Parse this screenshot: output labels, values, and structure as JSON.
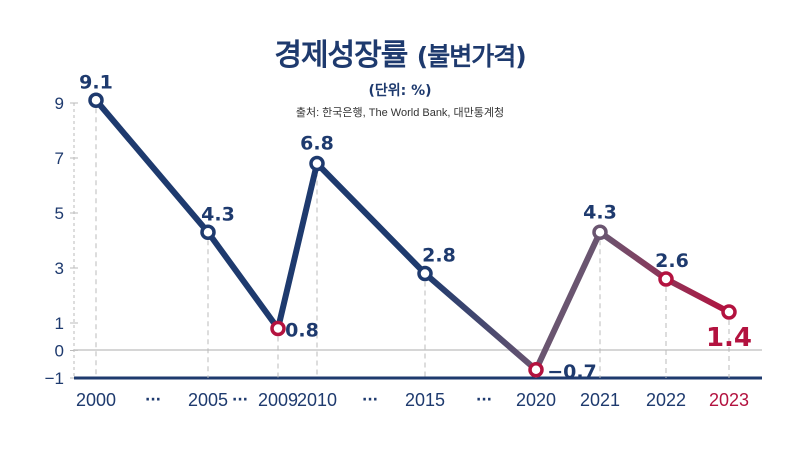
{
  "chart_data": {
    "type": "line",
    "title": "경제성장률",
    "subtitle": "(불변가격)",
    "unit_label": "(단위: %)",
    "source": "출처: 한국은행, The World Bank, 대만통계청",
    "x": [
      "2000",
      "2005",
      "2009",
      "2010",
      "2015",
      "2020",
      "2021",
      "2022",
      "2023"
    ],
    "values": [
      9.1,
      4.3,
      0.8,
      6.8,
      2.8,
      -0.7,
      4.3,
      2.6,
      1.4
    ],
    "data_labels": [
      "9.1",
      "4.3",
      "0.8",
      "6.8",
      "2.8",
      "−0.7",
      "4.3",
      "2.6",
      "1.4"
    ],
    "y_ticks": [
      "9",
      "7",
      "5",
      "3",
      "1",
      "0",
      "−1"
    ],
    "y_tick_values": [
      9,
      7,
      5,
      3,
      1,
      0,
      -1
    ],
    "ylim": [
      -1,
      9
    ],
    "gap_markers": [
      "···",
      "···",
      "···",
      "···"
    ],
    "highlight_points": [
      "2009",
      "2020",
      "2023"
    ],
    "colors": {
      "navy": "#1e3a6e",
      "crimson": "#b3123f",
      "transition": "#6a5570",
      "grid": "#bbbbbb"
    }
  }
}
